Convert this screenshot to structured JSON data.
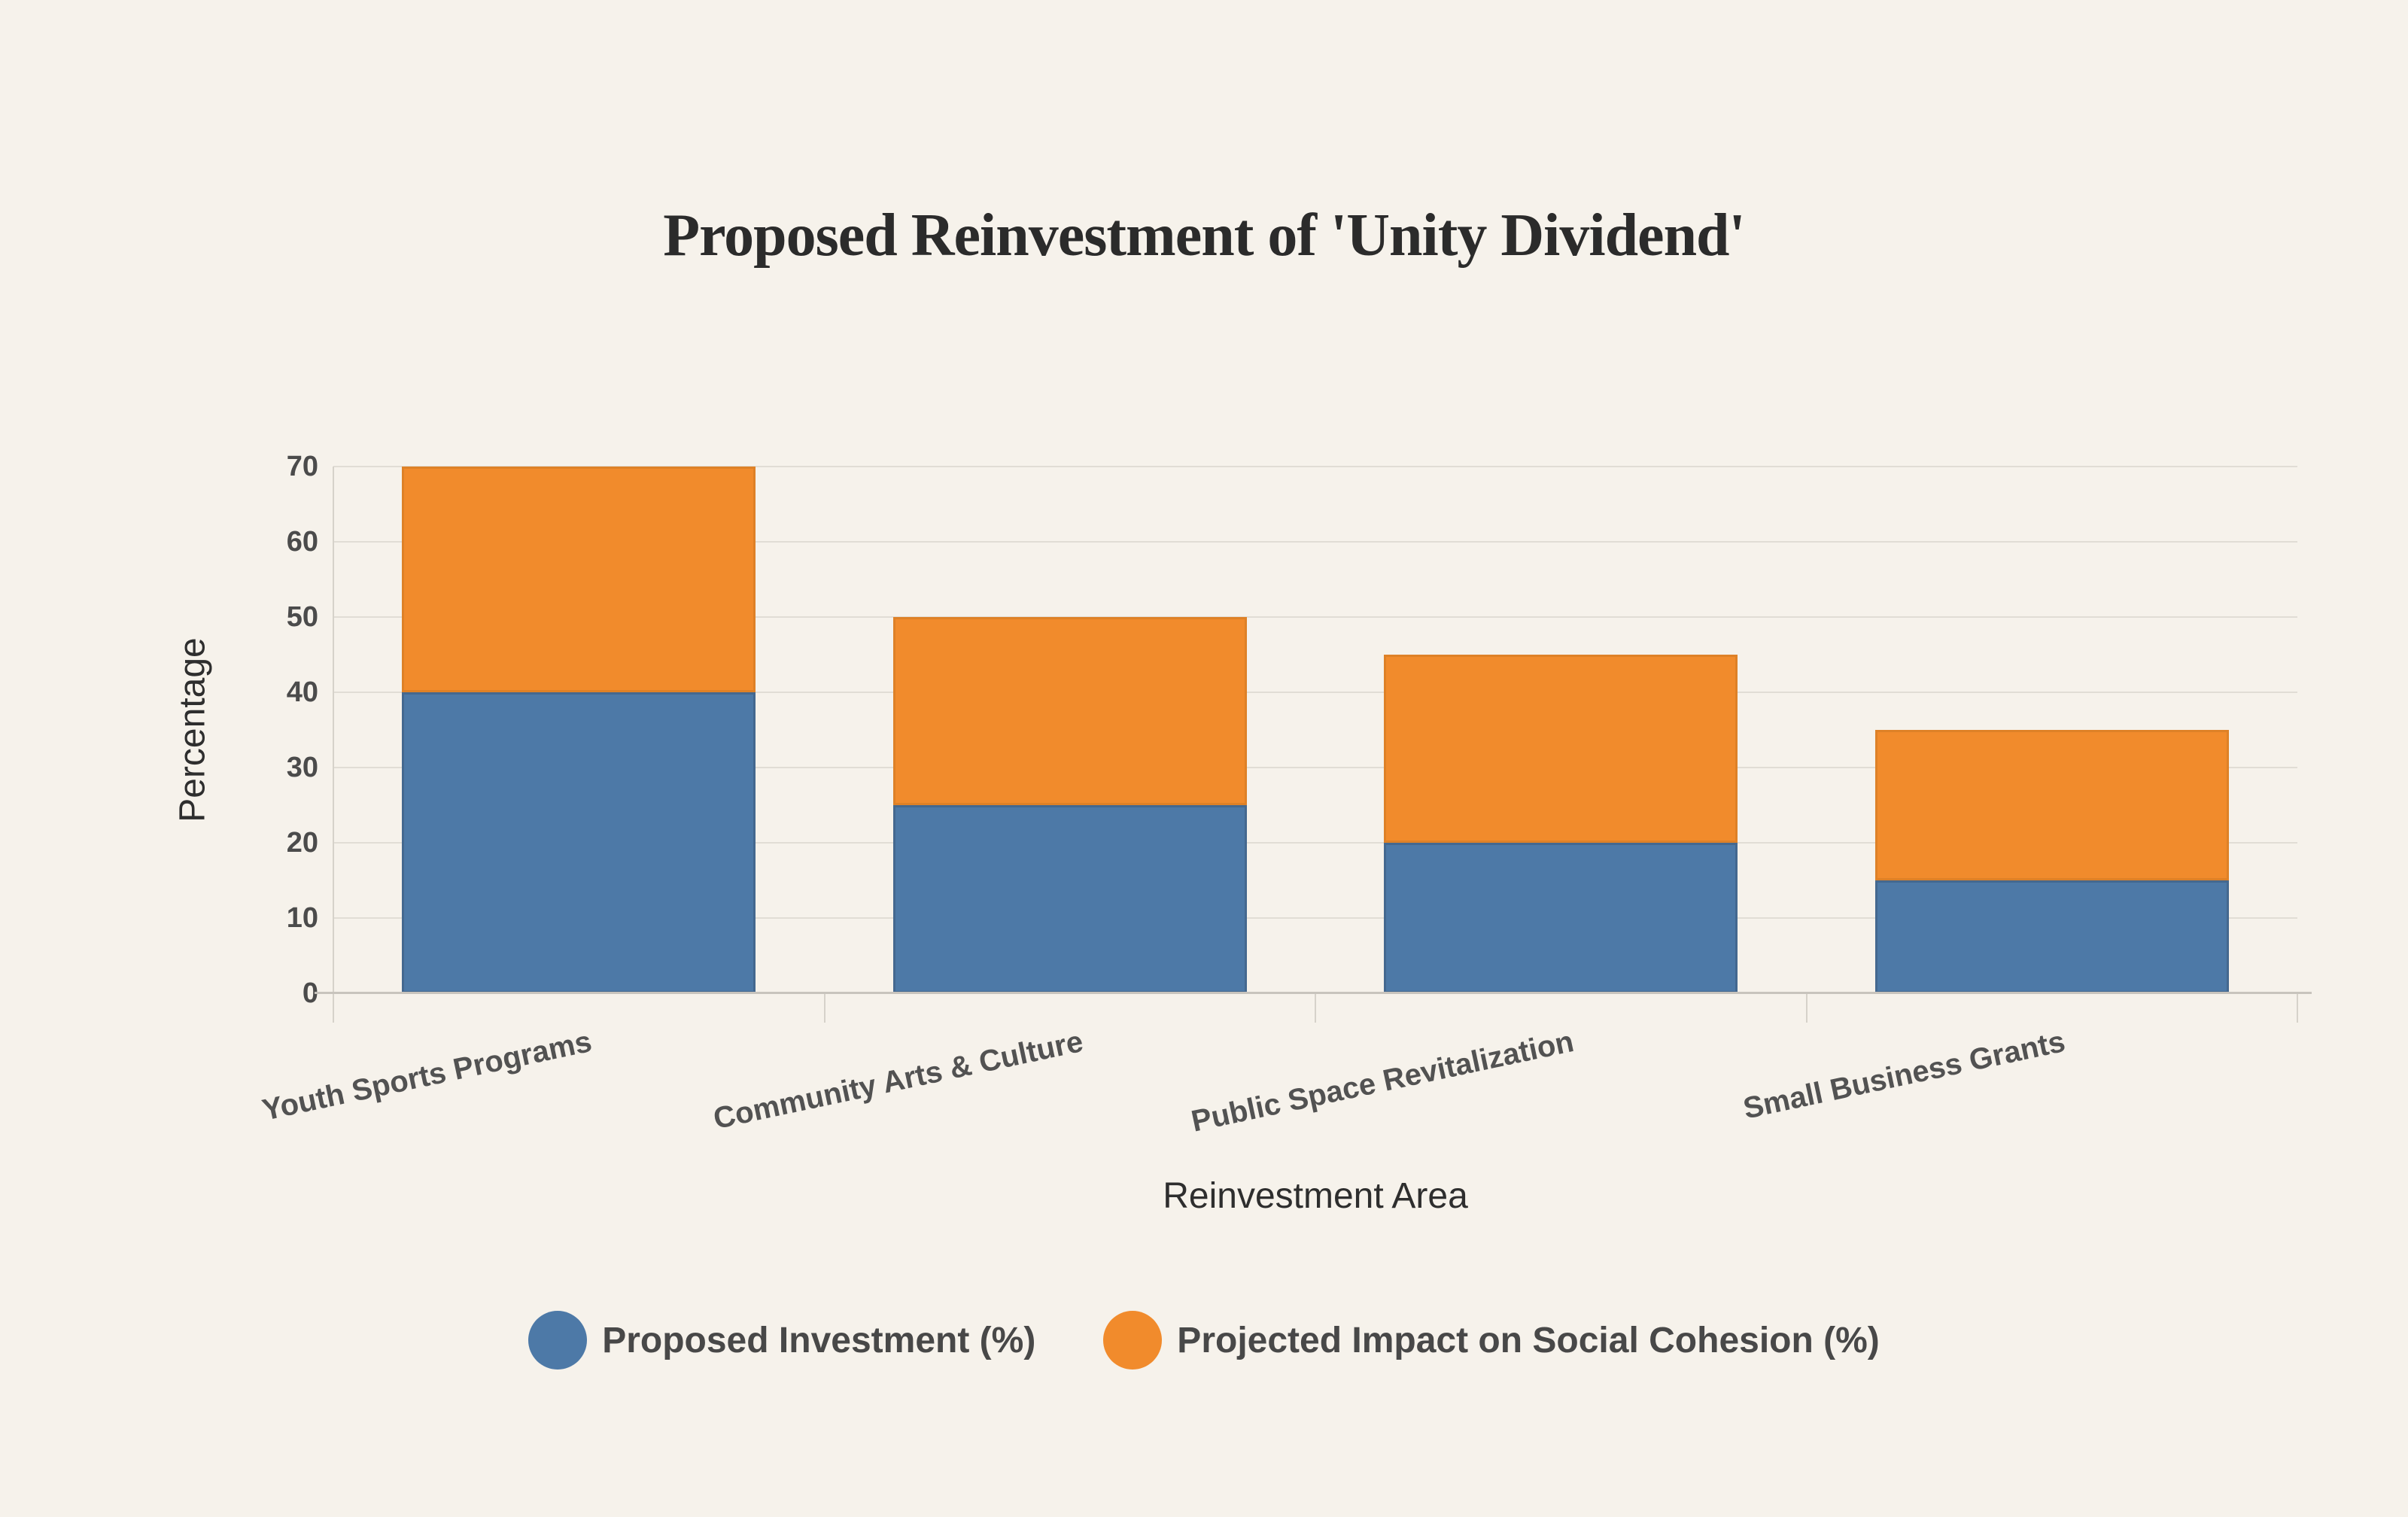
{
  "style": {
    "background": "#f6f2eb",
    "grid_color": "#e1ddd5",
    "axis_color": "#c8c4bd",
    "tick_mark_color": "#d6d2ca",
    "tick_text_color": "#4b4b4b",
    "category_text_color": "#525252",
    "axis_title_color": "#2e2e2e",
    "title_color": "#2b2b2b",
    "legend_text_color": "#484848"
  },
  "chart_data": {
    "type": "bar",
    "stacked": true,
    "title": "Proposed Reinvestment of 'Unity Dividend'",
    "xlabel": "Reinvestment Area",
    "ylabel": "Percentage",
    "categories": [
      "Youth Sports Programs",
      "Community Arts & Culture",
      "Public Space Revitalization",
      "Small Business Grants"
    ],
    "series": [
      {
        "name": "Proposed Investment (%)",
        "color": "#4d79a7",
        "edge_color": "#44688f",
        "values": [
          40,
          25,
          20,
          15
        ]
      },
      {
        "name": "Projected Impact on Social Cohesion (%)",
        "color": "#f18b2c",
        "edge_color": "#de8127",
        "values": [
          30,
          25,
          25,
          20
        ]
      }
    ],
    "stack_totals": [
      70,
      50,
      45,
      35
    ],
    "ylim": [
      0,
      70
    ],
    "yticks": [
      0,
      10,
      20,
      30,
      40,
      50,
      60,
      70
    ],
    "x_tick_label_rotation_deg": -12,
    "grid": "horizontal",
    "legend_position": "bottom",
    "legend_marker": "circle"
  }
}
